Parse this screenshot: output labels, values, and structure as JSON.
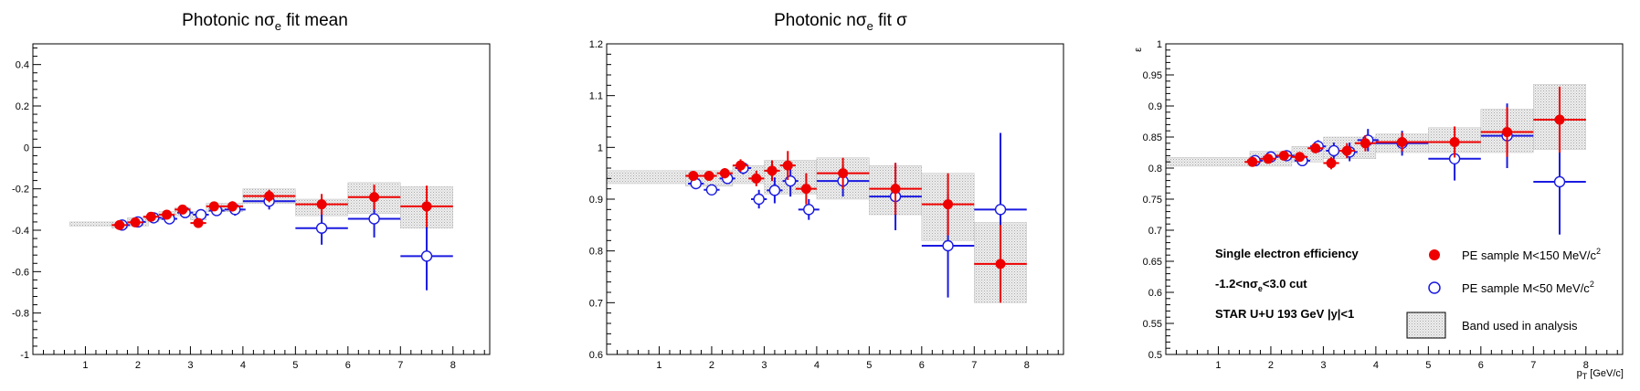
{
  "colors": {
    "red": "#ee0000",
    "blue": "#1a1ae0",
    "band_fill": "#d9d9d9",
    "band_edge": "#b5b5b5"
  },
  "chart_data": [
    {
      "type": "scatter",
      "title": {
        "pre": "Photonic n",
        "sigma": "σ",
        "sub": "e",
        "post": " fit mean"
      },
      "xlabel": "",
      "ylabel": "",
      "xlim": [
        0,
        8.7
      ],
      "ylim": [
        -1,
        0.5
      ],
      "xticks": [
        "1",
        "2",
        "3",
        "4",
        "5",
        "6",
        "7",
        "8"
      ],
      "yticks": [
        "-1",
        "-0.8",
        "-0.6",
        "-0.4",
        "-0.2",
        "0",
        "0.2",
        "0.4"
      ],
      "bands": [
        {
          "x": [
            0.7,
            1.5
          ],
          "y": [
            -0.38,
            -0.36
          ]
        },
        {
          "x": [
            1.5,
            1.8
          ],
          "y": [
            -0.39,
            -0.36
          ]
        },
        {
          "x": [
            1.8,
            2.2
          ],
          "y": [
            -0.38,
            -0.34
          ]
        },
        {
          "x": [
            2.2,
            2.4
          ],
          "y": [
            -0.36,
            -0.32
          ]
        },
        {
          "x": [
            2.4,
            2.7
          ],
          "y": [
            -0.35,
            -0.31
          ]
        },
        {
          "x": [
            2.7,
            3.0
          ],
          "y": [
            -0.33,
            -0.29
          ]
        },
        {
          "x": [
            3.0,
            3.3
          ],
          "y": [
            -0.35,
            -0.31
          ]
        },
        {
          "x": [
            3.3,
            3.6
          ],
          "y": [
            -0.31,
            -0.27
          ]
        },
        {
          "x": [
            3.6,
            4.0
          ],
          "y": [
            -0.31,
            -0.27
          ]
        },
        {
          "x": [
            4.0,
            5.0
          ],
          "y": [
            -0.27,
            -0.2
          ]
        },
        {
          "x": [
            5.0,
            6.0
          ],
          "y": [
            -0.33,
            -0.25
          ]
        },
        {
          "x": [
            6.0,
            7.0
          ],
          "y": [
            -0.32,
            -0.17
          ]
        },
        {
          "x": [
            7.0,
            8.0
          ],
          "y": [
            -0.39,
            -0.19
          ]
        }
      ],
      "series": [
        {
          "marker": "filled-circle",
          "points": [
            {
              "x": 1.65,
              "xe": 0.15,
              "y": -0.375,
              "ye": 0.015
            },
            {
              "x": 1.95,
              "xe": 0.15,
              "y": -0.362,
              "ye": 0.015
            },
            {
              "x": 2.25,
              "xe": 0.15,
              "y": -0.335,
              "ye": 0.015
            },
            {
              "x": 2.55,
              "xe": 0.15,
              "y": -0.325,
              "ye": 0.015
            },
            {
              "x": 2.85,
              "xe": 0.15,
              "y": -0.3,
              "ye": 0.015
            },
            {
              "x": 3.15,
              "xe": 0.15,
              "y": -0.365,
              "ye": 0.015
            },
            {
              "x": 3.45,
              "xe": 0.15,
              "y": -0.285,
              "ye": 0.02
            },
            {
              "x": 3.8,
              "xe": 0.2,
              "y": -0.285,
              "ye": 0.025
            },
            {
              "x": 4.5,
              "xe": 0.5,
              "y": -0.235,
              "ye": 0.03
            },
            {
              "x": 5.5,
              "xe": 0.5,
              "y": -0.275,
              "ye": 0.05
            },
            {
              "x": 6.5,
              "xe": 0.5,
              "y": -0.24,
              "ye": 0.06
            },
            {
              "x": 7.5,
              "xe": 0.5,
              "y": -0.285,
              "ye": 0.1
            }
          ]
        },
        {
          "marker": "open-circle",
          "points": [
            {
              "x": 1.7,
              "xe": 0.15,
              "y": -0.375,
              "ye": 0.015
            },
            {
              "x": 2.0,
              "xe": 0.15,
              "y": -0.36,
              "ye": 0.015
            },
            {
              "x": 2.3,
              "xe": 0.15,
              "y": -0.34,
              "ye": 0.015
            },
            {
              "x": 2.6,
              "xe": 0.15,
              "y": -0.345,
              "ye": 0.015
            },
            {
              "x": 2.9,
              "xe": 0.15,
              "y": -0.315,
              "ye": 0.015
            },
            {
              "x": 3.2,
              "xe": 0.15,
              "y": -0.325,
              "ye": 0.02
            },
            {
              "x": 3.5,
              "xe": 0.15,
              "y": -0.305,
              "ye": 0.02
            },
            {
              "x": 3.85,
              "xe": 0.2,
              "y": -0.3,
              "ye": 0.03
            },
            {
              "x": 4.5,
              "xe": 0.5,
              "y": -0.26,
              "ye": 0.04
            },
            {
              "x": 5.5,
              "xe": 0.5,
              "y": -0.39,
              "ye": 0.08
            },
            {
              "x": 6.5,
              "xe": 0.5,
              "y": -0.345,
              "ye": 0.09
            },
            {
              "x": 7.5,
              "xe": 0.5,
              "y": -0.525,
              "ye": 0.165
            }
          ]
        }
      ]
    },
    {
      "type": "scatter",
      "title": {
        "pre": "Photonic n",
        "sigma": "σ",
        "sub": "e",
        "post": " fit σ"
      },
      "xlabel": "",
      "ylabel": "",
      "xlim": [
        0,
        8.7
      ],
      "ylim": [
        0.6,
        1.2
      ],
      "xticks": [
        "1",
        "2",
        "3",
        "4",
        "5",
        "6",
        "7",
        "8"
      ],
      "yticks": [
        "0.6",
        "0.7",
        "0.8",
        "0.9",
        "1",
        "1.1",
        "1.2"
      ],
      "bands": [
        {
          "x": [
            0.0,
            1.5
          ],
          "y": [
            0.93,
            0.955
          ]
        },
        {
          "x": [
            1.5,
            2.4
          ],
          "y": [
            0.925,
            0.955
          ]
        },
        {
          "x": [
            2.4,
            3.0
          ],
          "y": [
            0.93,
            0.965
          ]
        },
        {
          "x": [
            3.0,
            4.0
          ],
          "y": [
            0.91,
            0.975
          ]
        },
        {
          "x": [
            4.0,
            5.0
          ],
          "y": [
            0.9,
            0.98
          ]
        },
        {
          "x": [
            5.0,
            6.0
          ],
          "y": [
            0.87,
            0.965
          ]
        },
        {
          "x": [
            6.0,
            7.0
          ],
          "y": [
            0.82,
            0.95
          ]
        },
        {
          "x": [
            7.0,
            8.0
          ],
          "y": [
            0.7,
            0.855
          ]
        }
      ],
      "series": [
        {
          "marker": "filled-circle",
          "points": [
            {
              "x": 1.65,
              "xe": 0.15,
              "y": 0.945,
              "ye": 0.008
            },
            {
              "x": 1.95,
              "xe": 0.15,
              "y": 0.945,
              "ye": 0.008
            },
            {
              "x": 2.25,
              "xe": 0.15,
              "y": 0.95,
              "ye": 0.01
            },
            {
              "x": 2.55,
              "xe": 0.15,
              "y": 0.965,
              "ye": 0.012
            },
            {
              "x": 2.85,
              "xe": 0.15,
              "y": 0.94,
              "ye": 0.015
            },
            {
              "x": 3.15,
              "xe": 0.15,
              "y": 0.955,
              "ye": 0.02
            },
            {
              "x": 3.45,
              "xe": 0.15,
              "y": 0.965,
              "ye": 0.028
            },
            {
              "x": 3.8,
              "xe": 0.2,
              "y": 0.92,
              "ye": 0.03
            },
            {
              "x": 4.5,
              "xe": 0.5,
              "y": 0.95,
              "ye": 0.03
            },
            {
              "x": 5.5,
              "xe": 0.5,
              "y": 0.92,
              "ye": 0.05
            },
            {
              "x": 6.5,
              "xe": 0.5,
              "y": 0.89,
              "ye": 0.06
            },
            {
              "x": 7.5,
              "xe": 0.5,
              "y": 0.775,
              "ye": 0.075
            }
          ]
        },
        {
          "marker": "open-circle",
          "points": [
            {
              "x": 1.7,
              "xe": 0.15,
              "y": 0.93,
              "ye": 0.008
            },
            {
              "x": 2.0,
              "xe": 0.15,
              "y": 0.918,
              "ye": 0.008
            },
            {
              "x": 2.3,
              "xe": 0.15,
              "y": 0.94,
              "ye": 0.01
            },
            {
              "x": 2.6,
              "xe": 0.15,
              "y": 0.96,
              "ye": 0.012
            },
            {
              "x": 2.9,
              "xe": 0.15,
              "y": 0.9,
              "ye": 0.018
            },
            {
              "x": 3.2,
              "xe": 0.15,
              "y": 0.917,
              "ye": 0.025
            },
            {
              "x": 3.5,
              "xe": 0.15,
              "y": 0.935,
              "ye": 0.03
            },
            {
              "x": 3.85,
              "xe": 0.2,
              "y": 0.88,
              "ye": 0.02
            },
            {
              "x": 4.5,
              "xe": 0.5,
              "y": 0.935,
              "ye": 0.03
            },
            {
              "x": 5.5,
              "xe": 0.5,
              "y": 0.905,
              "ye": 0.065
            },
            {
              "x": 6.5,
              "xe": 0.5,
              "y": 0.81,
              "ye": 0.1
            },
            {
              "x": 7.5,
              "xe": 0.5,
              "y": 0.88,
              "ye": 0.148
            }
          ]
        }
      ]
    },
    {
      "type": "scatter",
      "title": null,
      "xlabel": {
        "main": "p",
        "sub": "T",
        "unit": " [GeV/c]"
      },
      "ylabel": "ε",
      "xlim": [
        0,
        8.7
      ],
      "ylim": [
        0.5,
        1
      ],
      "xticks": [
        "1",
        "2",
        "3",
        "4",
        "5",
        "6",
        "7",
        "8"
      ],
      "yticks": [
        "0.5",
        "0.55",
        "0.6",
        "0.65",
        "0.7",
        "0.75",
        "0.8",
        "0.85",
        "0.9",
        "0.95",
        "1"
      ],
      "bands": [
        {
          "x": [
            0.0,
            1.6
          ],
          "y": [
            0.803,
            0.817
          ]
        },
        {
          "x": [
            1.6,
            2.4
          ],
          "y": [
            0.803,
            0.827
          ]
        },
        {
          "x": [
            2.4,
            3.0
          ],
          "y": [
            0.81,
            0.835
          ]
        },
        {
          "x": [
            3.0,
            4.0
          ],
          "y": [
            0.815,
            0.85
          ]
        },
        {
          "x": [
            4.0,
            5.0
          ],
          "y": [
            0.825,
            0.855
          ]
        },
        {
          "x": [
            5.0,
            6.0
          ],
          "y": [
            0.825,
            0.865
          ]
        },
        {
          "x": [
            6.0,
            7.0
          ],
          "y": [
            0.825,
            0.895
          ]
        },
        {
          "x": [
            7.0,
            8.0
          ],
          "y": [
            0.83,
            0.935
          ]
        }
      ],
      "series": [
        {
          "marker": "filled-circle",
          "points": [
            {
              "x": 1.65,
              "xe": 0.15,
              "y": 0.81,
              "ye": 0.006
            },
            {
              "x": 1.95,
              "xe": 0.15,
              "y": 0.815,
              "ye": 0.006
            },
            {
              "x": 2.25,
              "xe": 0.15,
              "y": 0.82,
              "ye": 0.006
            },
            {
              "x": 2.55,
              "xe": 0.15,
              "y": 0.818,
              "ye": 0.007
            },
            {
              "x": 2.85,
              "xe": 0.15,
              "y": 0.832,
              "ye": 0.008
            },
            {
              "x": 3.15,
              "xe": 0.15,
              "y": 0.808,
              "ye": 0.01
            },
            {
              "x": 3.45,
              "xe": 0.15,
              "y": 0.828,
              "ye": 0.012
            },
            {
              "x": 3.8,
              "xe": 0.2,
              "y": 0.84,
              "ye": 0.013
            },
            {
              "x": 4.5,
              "xe": 0.5,
              "y": 0.842,
              "ye": 0.015
            },
            {
              "x": 5.5,
              "xe": 0.5,
              "y": 0.842,
              "ye": 0.025
            },
            {
              "x": 6.5,
              "xe": 0.5,
              "y": 0.858,
              "ye": 0.04
            },
            {
              "x": 7.5,
              "xe": 0.5,
              "y": 0.878,
              "ye": 0.053
            }
          ]
        },
        {
          "marker": "open-circle",
          "points": [
            {
              "x": 1.7,
              "xe": 0.15,
              "y": 0.812,
              "ye": 0.006
            },
            {
              "x": 2.0,
              "xe": 0.15,
              "y": 0.818,
              "ye": 0.006
            },
            {
              "x": 2.3,
              "xe": 0.15,
              "y": 0.82,
              "ye": 0.006
            },
            {
              "x": 2.6,
              "xe": 0.15,
              "y": 0.812,
              "ye": 0.007
            },
            {
              "x": 2.9,
              "xe": 0.15,
              "y": 0.835,
              "ye": 0.01
            },
            {
              "x": 3.2,
              "xe": 0.15,
              "y": 0.828,
              "ye": 0.013
            },
            {
              "x": 3.5,
              "xe": 0.15,
              "y": 0.826,
              "ye": 0.015
            },
            {
              "x": 3.85,
              "xe": 0.2,
              "y": 0.845,
              "ye": 0.018
            },
            {
              "x": 4.5,
              "xe": 0.5,
              "y": 0.84,
              "ye": 0.02
            },
            {
              "x": 5.5,
              "xe": 0.5,
              "y": 0.815,
              "ye": 0.035
            },
            {
              "x": 6.5,
              "xe": 0.5,
              "y": 0.852,
              "ye": 0.052
            },
            {
              "x": 7.5,
              "xe": 0.5,
              "y": 0.778,
              "ye": 0.085
            }
          ]
        }
      ],
      "legend": {
        "placement": "bottom",
        "notes": [
          {
            "text": "Single electron efficiency"
          },
          {
            "pre": "-1.2<n",
            "sigma": "σ",
            "sub": "e",
            "post": "<3.0 cut"
          },
          {
            "text": "STAR U+U 193 GeV |y|<1"
          }
        ],
        "entries": [
          {
            "marker": "filled-circle",
            "pre": "PE sample M<150 MeV/c",
            "sup": "2"
          },
          {
            "marker": "open-circle",
            "pre": "PE sample M<50 MeV/c",
            "sup": "2"
          },
          {
            "marker": "band",
            "text": "Band used in analysis"
          }
        ]
      }
    }
  ]
}
